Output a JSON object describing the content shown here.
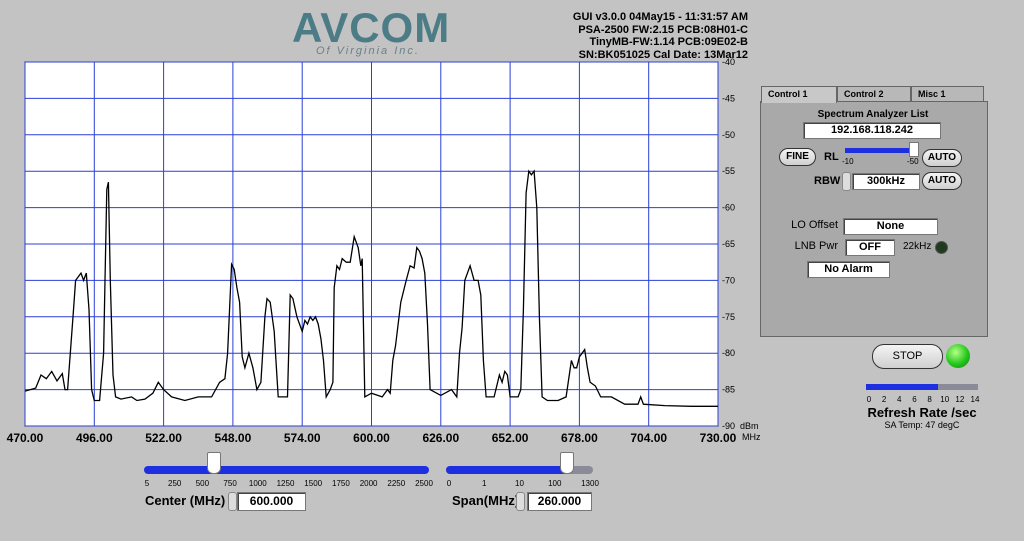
{
  "header": {
    "logo": "AVCOM",
    "logo_sub": "Of Virginia Inc.",
    "info": [
      "GUI v3.0.0  04May15 - 11:31:57 AM",
      "PSA-2500 FW:2.15 PCB:08H01-C",
      "TinyMB-FW:1.14  PCB:09E02-B",
      "SN:BK051025  Cal Date: 13Mar12"
    ]
  },
  "chart_data": {
    "type": "line",
    "color": "#000000",
    "grid": true,
    "grid_color": "#2b3fd6",
    "x_unit": "MHz",
    "y_unit": "dBm",
    "xlim": [
      470,
      730
    ],
    "ylim": [
      -90,
      -40
    ],
    "xticks": [
      {
        "value": 470,
        "label": "470.00"
      },
      {
        "value": 496,
        "label": "496.00"
      },
      {
        "value": 522,
        "label": "522.00"
      },
      {
        "value": 548,
        "label": "548.00"
      },
      {
        "value": 574,
        "label": "574.00"
      },
      {
        "value": 600,
        "label": "600.00"
      },
      {
        "value": 626,
        "label": "626.00"
      },
      {
        "value": 652,
        "label": "652.00"
      },
      {
        "value": 678,
        "label": "678.00"
      },
      {
        "value": 704,
        "label": "704.00"
      },
      {
        "value": 730,
        "label": "730.00"
      }
    ],
    "yticks": [
      -40,
      -45,
      -50,
      -55,
      -60,
      -65,
      -70,
      -75,
      -80,
      -85,
      -90
    ],
    "x": [
      470,
      474,
      476,
      478,
      480,
      482,
      484,
      485,
      486,
      488,
      489,
      491,
      492,
      493,
      494,
      495,
      496,
      498,
      499.5,
      500,
      500.7,
      501.3,
      502,
      503,
      504,
      506,
      510,
      512,
      515,
      518,
      520,
      522,
      525,
      530,
      535,
      540,
      543,
      545,
      546,
      547,
      547.5,
      548.5,
      549.5,
      550.5,
      551.5,
      552.5,
      554,
      555.5,
      557,
      558.5,
      560,
      560.8,
      562,
      563.5,
      564,
      565,
      567,
      568.5,
      569.5,
      570.5,
      572,
      574,
      575,
      576,
      577,
      578,
      579,
      580,
      581,
      582,
      583,
      584.5,
      585.5,
      586,
      587,
      588,
      589,
      590.5,
      592,
      593.5,
      595,
      596,
      596.5,
      597.5,
      600,
      604,
      606,
      607,
      608,
      609,
      611,
      613,
      614.5,
      616,
      617,
      618,
      619,
      620,
      621,
      622,
      626,
      630,
      632,
      633,
      634,
      635,
      637,
      638.5,
      640,
      641,
      642,
      643,
      646,
      648,
      649,
      650,
      651,
      652,
      655,
      656,
      657,
      658,
      659,
      660,
      661,
      662,
      663,
      664,
      666,
      670,
      673,
      675,
      676,
      677,
      678,
      679,
      680,
      681,
      682,
      684,
      686,
      690,
      695,
      700,
      701,
      702,
      710,
      720,
      730
    ],
    "values": [
      -85.2,
      -84.8,
      -83,
      -83.5,
      -82.5,
      -83.8,
      -82.8,
      -85,
      -85,
      -75,
      -70,
      -69,
      -70,
      -69,
      -74,
      -85,
      -86.5,
      -86.5,
      -80,
      -70,
      -57.5,
      -56.5,
      -70,
      -83,
      -86,
      -86.3,
      -86,
      -86.5,
      -86.3,
      -85.5,
      -84,
      -85,
      -86,
      -86.5,
      -86,
      -86,
      -84,
      -83.5,
      -80,
      -72,
      -67.8,
      -68.5,
      -71,
      -73,
      -80.5,
      -82,
      -80,
      -82,
      -85,
      -84,
      -75,
      -72.5,
      -73,
      -77,
      -80,
      -86,
      -86,
      -86,
      -72,
      -72.5,
      -75,
      -77,
      -75.5,
      -76,
      -75,
      -75.5,
      -75,
      -76,
      -78,
      -81,
      -86,
      -85,
      -84,
      -71,
      -68,
      -68.5,
      -67,
      -67.5,
      -67.5,
      -64,
      -65.5,
      -68,
      -67,
      -86,
      -85.5,
      -86,
      -85,
      -85.5,
      -81,
      -79,
      -73,
      -70,
      -68,
      -68.3,
      -65.5,
      -66,
      -67,
      -69,
      -76,
      -85,
      -85.8,
      -85,
      -86,
      -80,
      -76.5,
      -70,
      -68,
      -70,
      -70,
      -72,
      -81,
      -86,
      -86,
      -83,
      -84,
      -82.5,
      -83,
      -86,
      -86,
      -85,
      -74,
      -58,
      -55,
      -55.5,
      -55,
      -60,
      -75,
      -86,
      -86.5,
      -86.5,
      -86,
      -81,
      -82,
      -82,
      -80.5,
      -80,
      -79.5,
      -82,
      -84,
      -84.5,
      -86,
      -86,
      -87,
      -87,
      -86,
      -87,
      -87.2,
      -87.3,
      -87.3
    ]
  },
  "controls": {
    "tabs": [
      "Control 1",
      "Control 2",
      "Misc 1"
    ],
    "list_label": "Spectrum Analyzer List",
    "ip": "192.168.118.242",
    "fine": "FINE",
    "rl": "RL",
    "rl_min": "-10",
    "rl_max": "-50",
    "auto": "AUTO",
    "rbw": "RBW",
    "rbw_value": "300kHz",
    "auto2": "AUTO",
    "lo_offset": "LO Offset",
    "lo_value": "None",
    "lnb_pwr": "LNB Pwr",
    "lnb_value": "OFF",
    "khz22": "22kHz",
    "alarm": "No Alarm",
    "stop": "STOP",
    "refresh_ticks": [
      "0",
      "2",
      "4",
      "6",
      "8",
      "10",
      "12",
      "14"
    ],
    "refresh_label": "Refresh Rate /sec",
    "temp": "SA Temp: 47 degC",
    "center_ticks": [
      "5",
      "250",
      "500",
      "750",
      "1000",
      "1250",
      "1500",
      "1750",
      "2000",
      "2250",
      "2500"
    ],
    "center_label": "Center (MHz)",
    "center_value": "600.000",
    "span_ticks": [
      "0",
      "1",
      "10",
      "100",
      "1300"
    ],
    "span_label": "Span(MHz)",
    "span_value": "260.000"
  }
}
